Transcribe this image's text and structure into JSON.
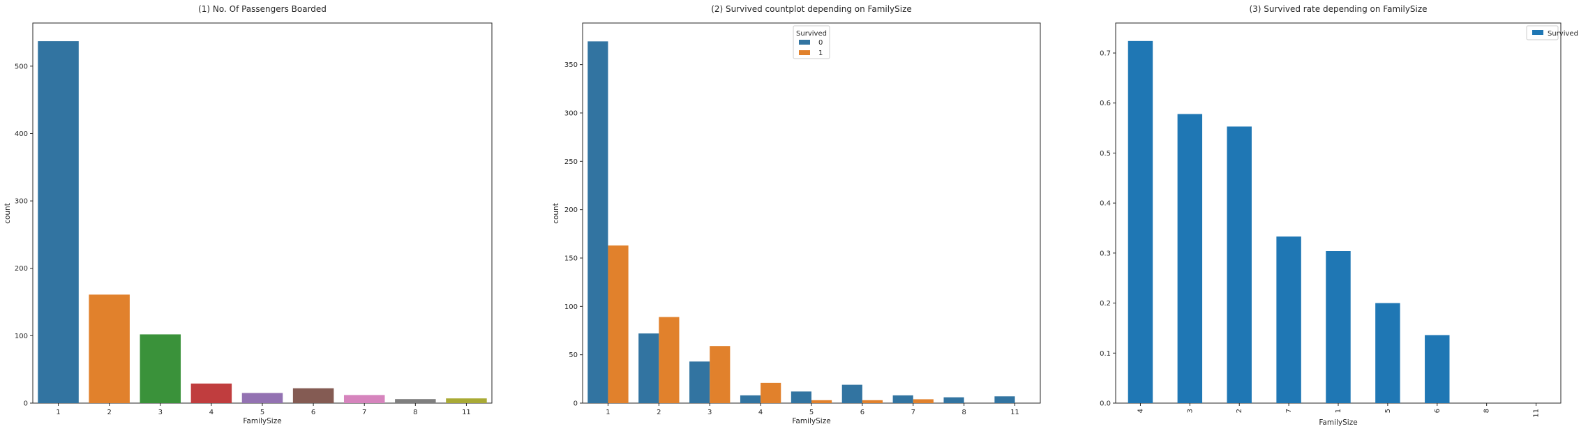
{
  "chart_data": [
    {
      "type": "bar",
      "title": "(1) No. Of Passengers Boarded",
      "xlabel": "FamilySize",
      "ylabel": "count",
      "categories": [
        "1",
        "2",
        "3",
        "4",
        "5",
        "6",
        "7",
        "8",
        "11"
      ],
      "values": [
        537,
        161,
        102,
        29,
        15,
        22,
        12,
        6,
        7
      ],
      "colors": [
        "#3274a1",
        "#e1812c",
        "#3a923a",
        "#c03d3e",
        "#9372b2",
        "#845b53",
        "#d684bd",
        "#7f7f7f",
        "#a9aa35"
      ],
      "yticks": [
        0,
        100,
        200,
        300,
        400,
        500
      ],
      "ylim": [
        0,
        564
      ],
      "grid": false
    },
    {
      "type": "bar",
      "title": "(2) Survived countplot depending on FamilySize",
      "xlabel": "FamilySize",
      "ylabel": "count",
      "categories": [
        "1",
        "2",
        "3",
        "4",
        "5",
        "6",
        "7",
        "8",
        "11"
      ],
      "series": [
        {
          "name": "0",
          "color": "#3274a1",
          "values": [
            374,
            72,
            43,
            8,
            12,
            19,
            8,
            6,
            7
          ]
        },
        {
          "name": "1",
          "color": "#e1812c",
          "values": [
            163,
            89,
            59,
            21,
            3,
            3,
            4,
            0,
            0
          ]
        }
      ],
      "yticks": [
        0,
        50,
        100,
        150,
        200,
        250,
        300,
        350
      ],
      "ylim": [
        0,
        393
      ],
      "legend": {
        "title": "Survived",
        "placement": "top-center"
      },
      "grid": false
    },
    {
      "type": "bar",
      "title": "(3) Survived rate depending on FamilySize",
      "xlabel": "FamilySize",
      "ylabel": "",
      "categories": [
        "4",
        "3",
        "2",
        "7",
        "1",
        "5",
        "6",
        "8",
        "11"
      ],
      "series": [
        {
          "name": "Survived",
          "color": "#1f77b4",
          "values": [
            0.724,
            0.578,
            0.553,
            0.333,
            0.304,
            0.2,
            0.136,
            0.0,
            0.0
          ]
        }
      ],
      "yticks": [
        "0.0",
        "0.1",
        "0.2",
        "0.3",
        "0.4",
        "0.5",
        "0.6",
        "0.7"
      ],
      "ylim": [
        0,
        0.76
      ],
      "legend": {
        "placement": "top-right"
      },
      "xtick_rotation": 90,
      "grid": false
    }
  ]
}
